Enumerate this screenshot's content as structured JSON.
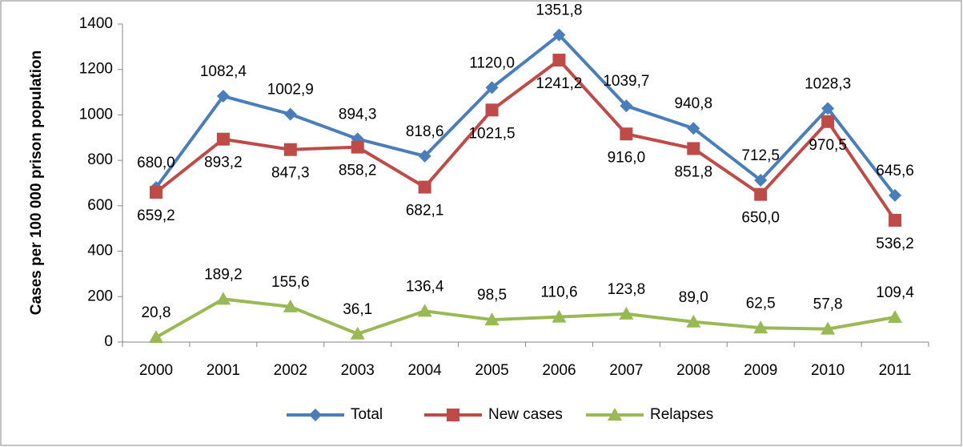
{
  "chart_data": {
    "type": "line",
    "y_label": "Cases per 100 000 prison population",
    "categories": [
      "2000",
      "2001",
      "2002",
      "2003",
      "2004",
      "2005",
      "2006",
      "2007",
      "2008",
      "2009",
      "2010",
      "2011"
    ],
    "series": [
      {
        "name": "Total",
        "color": "#4a7ebb",
        "marker": "diamond",
        "values": [
          680.0,
          1082.4,
          1002.9,
          894.3,
          818.6,
          1120.0,
          1351.8,
          1039.7,
          940.8,
          712.5,
          1028.3,
          645.6
        ],
        "value_labels": [
          "680,0",
          "1082,4",
          "1002,9",
          "894,3",
          "818,6",
          "1120,0",
          "1351,8",
          "1039,7",
          "940,8",
          "712,5",
          "1028,3",
          "645,6"
        ]
      },
      {
        "name": "New cases",
        "color": "#be4b48",
        "marker": "square",
        "values": [
          659.2,
          893.2,
          847.3,
          858.2,
          682.1,
          1021.5,
          1241.2,
          916.0,
          851.8,
          650.0,
          970.5,
          536.2
        ],
        "value_labels": [
          "659,2",
          "893,2",
          "847,3",
          "858,2",
          "682,1",
          "1021,5",
          "1241,2",
          "916,0",
          "851,8",
          "650,0",
          "970,5",
          "536,2"
        ]
      },
      {
        "name": "Relapses",
        "color": "#98b954",
        "marker": "triangle",
        "values": [
          20.8,
          189.2,
          155.6,
          36.1,
          136.4,
          98.5,
          110.6,
          123.8,
          89.0,
          62.5,
          57.8,
          109.4
        ],
        "value_labels": [
          "20,8",
          "189,2",
          "155,6",
          "36,1",
          "136,4",
          "98,5",
          "110,6",
          "123,8",
          "89,0",
          "62,5",
          "57,8",
          "109,4"
        ]
      }
    ],
    "ylim": [
      0,
      1400
    ],
    "yticks": [
      0,
      200,
      400,
      600,
      800,
      1000,
      1200,
      1400
    ],
    "grid": false,
    "legend": "bottom"
  }
}
